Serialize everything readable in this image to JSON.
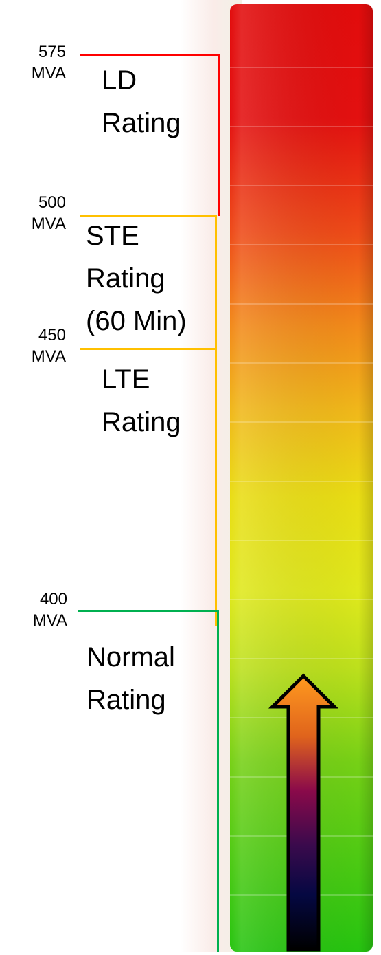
{
  "levels": [
    {
      "value": "575",
      "unit": "MVA",
      "label_lines": [
        "LD",
        "Rating"
      ]
    },
    {
      "value": "500",
      "unit": "MVA",
      "label_lines": [
        "STE",
        "Rating",
        "(60 Min)"
      ]
    },
    {
      "value": "450",
      "unit": "MVA",
      "label_lines": [
        "LTE",
        "Rating"
      ]
    },
    {
      "value": "400",
      "unit": "MVA",
      "label_lines": [
        "Normal",
        "Rating"
      ]
    }
  ],
  "colors": {
    "ld": "#ff0000",
    "ste_lte": "#ffc000",
    "normal": "#00b050",
    "gauge_top": "#e00d0d",
    "gauge_mid": "#e8e012",
    "gauge_bottom": "#2cc612",
    "arrow_top": "#ff9a1f",
    "arrow_mid": "#8a0a4a",
    "arrow_bottom": "#000000"
  },
  "arrow_icon": "up-arrow-icon"
}
